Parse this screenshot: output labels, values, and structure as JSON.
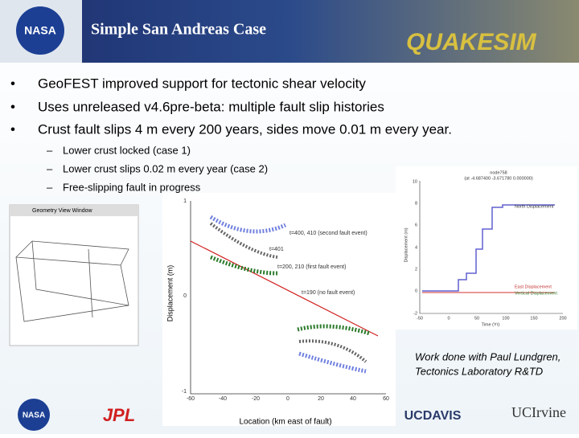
{
  "header": {
    "title": "Simple San Andreas Case",
    "logo": "NASA",
    "banner": "QUAKESIM"
  },
  "bullets": [
    "GeoFEST improved support for tectonic shear velocity",
    "Uses unreleased v4.6pre-beta: multiple fault slip histories",
    "Crust fault slips 4 m every 200 years, sides move 0.01 m every year."
  ],
  "sub_bullets": [
    "Lower crust locked (case 1)",
    "Lower crust slips 0.02 m every year (case 2)",
    "Free-slipping fault in progress"
  ],
  "bullet_marker": "•",
  "sub_marker": "–",
  "geometry_window": {
    "title": "Geometry View Window"
  },
  "main_plot": {
    "ylabel": "Displacement (m)",
    "xlabel": "Location (km east of fault)",
    "xticks": [
      "-60",
      "-40",
      "-20",
      "0",
      "20",
      "40",
      "60"
    ],
    "yticks": [
      "1",
      "0",
      "-1"
    ],
    "annotations": [
      "t=400, 410 (second fault event)",
      "t=401",
      "t=200, 210 (first fault event)",
      "t=190 (no fault event)"
    ]
  },
  "time_plot": {
    "title": "node758",
    "subtitle": "(at -4.687400  -3.671780  0.000000)",
    "ylabel": "Displacement (m)",
    "xlabel": "Time (Yr)",
    "xticks": [
      "-50",
      "0",
      "50",
      "100",
      "150",
      "200"
    ],
    "yticks": [
      "10",
      "8",
      "6",
      "4",
      "2",
      "0",
      "-2"
    ],
    "legend": [
      "North Displacement",
      "East Displacement",
      "Vertical Displacement"
    ]
  },
  "caption": [
    "Work done with Paul Lundgren,",
    "Tectonics Laboratory R&TD"
  ],
  "footer": [
    "NASA",
    "JPL",
    "UCDAVIS",
    "UCIrvine"
  ]
}
